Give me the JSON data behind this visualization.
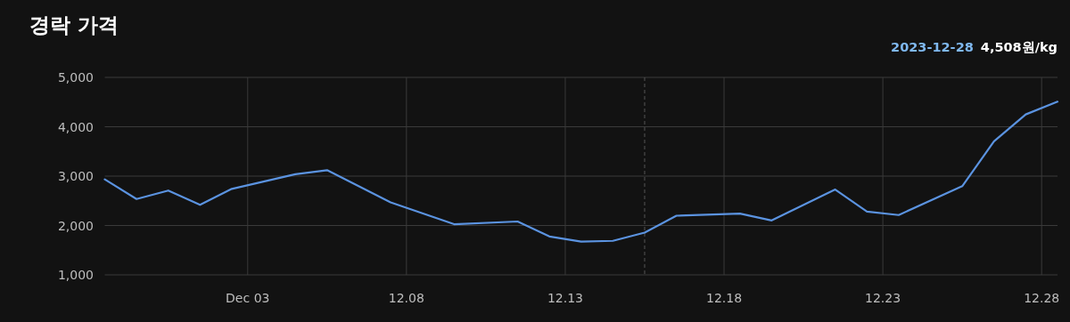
{
  "chart_data": {
    "type": "line",
    "title": "경락 가격",
    "annotations": [
      "2023-12-28",
      "4,508원/kg"
    ],
    "x": [
      "2023-11-28T12:00",
      "2023-11-29T12:00",
      "2023-11-30T12:00",
      "2023-12-01T12:00",
      "2023-12-02T12:00",
      "2023-12-04T12:00",
      "2023-12-05T12:00",
      "2023-12-07T12:00",
      "2023-12-09T12:00",
      "2023-12-11T12:00",
      "2023-12-12T12:00",
      "2023-12-13T12:00",
      "2023-12-14T12:00",
      "2023-12-15T12:00",
      "2023-12-16T12:00",
      "2023-12-18T12:00",
      "2023-12-19T12:00",
      "2023-12-21T12:00",
      "2023-12-22T12:00",
      "2023-12-23T12:00",
      "2023-12-25T12:00",
      "2023-12-26T12:00",
      "2023-12-27T12:00",
      "2023-12-28T12:00"
    ],
    "series": [
      {
        "color": "#5b93e0",
        "values": [
          2935,
          2536,
          2708,
          2418,
          2742,
          3038,
          3120,
          2467,
          2026,
          2081,
          1778,
          1675,
          1689,
          1855,
          2198,
          2240,
          2102,
          2728,
          2281,
          2212,
          2797,
          3706,
          4250,
          4508
        ]
      }
    ],
    "xlim": [
      "2023-11-28T12:00",
      "2023-12-28T12:00"
    ],
    "xticks": [
      {
        "value": "2023-12-03",
        "label": "Dec 03"
      },
      {
        "value": "2023-12-08",
        "label": "12.08"
      },
      {
        "value": "2023-12-13",
        "label": "12.13"
      },
      {
        "value": "2023-12-18",
        "label": "12.18"
      },
      {
        "value": "2023-12-23",
        "label": "12.23"
      },
      {
        "value": "2023-12-28",
        "label": "12.28"
      }
    ],
    "ylim": [
      1000,
      5000
    ],
    "yticks": [
      {
        "value": 1000,
        "label": "1,000"
      },
      {
        "value": 2000,
        "label": "2,000"
      },
      {
        "value": 3000,
        "label": "3,000"
      },
      {
        "value": 4000,
        "label": "4,000"
      },
      {
        "value": 5000,
        "label": "5,000"
      }
    ],
    "grid": true,
    "line_style": "solid",
    "ref_lines": [
      {
        "axis": "x",
        "value": "2023-12-15T12:00",
        "line_style": "dashed"
      }
    ]
  }
}
